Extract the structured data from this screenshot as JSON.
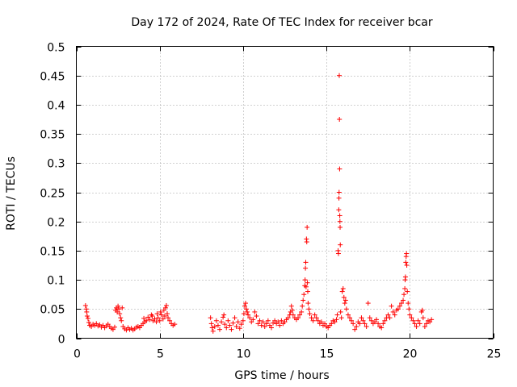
{
  "chart_data": {
    "type": "scatter",
    "title": "Day 172 of 2024, Rate Of TEC Index for receiver bcar",
    "xlabel": "GPS time / hours",
    "ylabel": "ROTI / TECUs",
    "xlim": [
      0,
      25
    ],
    "ylim": [
      0,
      0.5
    ],
    "xticks": [
      0,
      5,
      10,
      15,
      20,
      25
    ],
    "xtick_labels": [
      "0",
      "5",
      "10",
      "15",
      "20",
      "25"
    ],
    "yticks": [
      0,
      0.05,
      0.1,
      0.15,
      0.2,
      0.25,
      0.3,
      0.35,
      0.4,
      0.45,
      0.5
    ],
    "ytick_labels": [
      "0",
      "0.05",
      "0.1",
      "0.15",
      "0.2",
      "0.25",
      "0.3",
      "0.35",
      "0.4",
      "0.45",
      "0.5"
    ],
    "grid": true,
    "marker": "+",
    "color": "#ff0000",
    "points": [
      [
        0.55,
        0.056
      ],
      [
        0.6,
        0.05
      ],
      [
        0.62,
        0.045
      ],
      [
        0.65,
        0.038
      ],
      [
        0.7,
        0.034
      ],
      [
        0.75,
        0.027
      ],
      [
        0.8,
        0.022
      ],
      [
        0.9,
        0.02
      ],
      [
        1.0,
        0.024
      ],
      [
        1.1,
        0.022
      ],
      [
        1.2,
        0.025
      ],
      [
        1.3,
        0.021
      ],
      [
        1.4,
        0.023
      ],
      [
        1.5,
        0.019
      ],
      [
        1.6,
        0.022
      ],
      [
        1.7,
        0.018
      ],
      [
        1.8,
        0.021
      ],
      [
        1.9,
        0.024
      ],
      [
        2.0,
        0.02
      ],
      [
        2.1,
        0.017
      ],
      [
        2.2,
        0.015
      ],
      [
        2.3,
        0.019
      ],
      [
        2.35,
        0.048
      ],
      [
        2.4,
        0.052
      ],
      [
        2.45,
        0.045
      ],
      [
        2.5,
        0.055
      ],
      [
        2.55,
        0.05
      ],
      [
        2.6,
        0.042
      ],
      [
        2.65,
        0.035
      ],
      [
        2.7,
        0.03
      ],
      [
        2.75,
        0.052
      ],
      [
        2.8,
        0.02
      ],
      [
        2.9,
        0.016
      ],
      [
        3.0,
        0.014
      ],
      [
        3.1,
        0.018
      ],
      [
        3.2,
        0.015
      ],
      [
        3.3,
        0.017
      ],
      [
        3.4,
        0.014
      ],
      [
        3.5,
        0.016
      ],
      [
        3.6,
        0.019
      ],
      [
        3.7,
        0.02
      ],
      [
        3.8,
        0.018
      ],
      [
        3.9,
        0.022
      ],
      [
        4.0,
        0.025
      ],
      [
        4.05,
        0.034
      ],
      [
        4.1,
        0.028
      ],
      [
        4.2,
        0.03
      ],
      [
        4.3,
        0.036
      ],
      [
        4.4,
        0.032
      ],
      [
        4.5,
        0.04
      ],
      [
        4.55,
        0.038
      ],
      [
        4.6,
        0.03
      ],
      [
        4.7,
        0.033
      ],
      [
        4.8,
        0.028
      ],
      [
        4.85,
        0.042
      ],
      [
        4.9,
        0.035
      ],
      [
        5.0,
        0.03
      ],
      [
        5.05,
        0.045
      ],
      [
        5.1,
        0.04
      ],
      [
        5.2,
        0.033
      ],
      [
        5.25,
        0.048
      ],
      [
        5.3,
        0.038
      ],
      [
        5.35,
        0.052
      ],
      [
        5.4,
        0.056
      ],
      [
        5.45,
        0.042
      ],
      [
        5.5,
        0.035
      ],
      [
        5.6,
        0.03
      ],
      [
        5.7,
        0.025
      ],
      [
        5.8,
        0.022
      ],
      [
        5.9,
        0.024
      ],
      [
        8.05,
        0.035
      ],
      [
        8.1,
        0.025
      ],
      [
        8.15,
        0.018
      ],
      [
        8.2,
        0.012
      ],
      [
        8.3,
        0.02
      ],
      [
        8.4,
        0.03
      ],
      [
        8.5,
        0.022
      ],
      [
        8.6,
        0.015
      ],
      [
        8.7,
        0.028
      ],
      [
        8.8,
        0.036
      ],
      [
        8.85,
        0.04
      ],
      [
        8.9,
        0.024
      ],
      [
        9.0,
        0.018
      ],
      [
        9.1,
        0.03
      ],
      [
        9.2,
        0.022
      ],
      [
        9.3,
        0.015
      ],
      [
        9.4,
        0.026
      ],
      [
        9.5,
        0.035
      ],
      [
        9.6,
        0.02
      ],
      [
        9.7,
        0.028
      ],
      [
        9.8,
        0.017
      ],
      [
        9.9,
        0.024
      ],
      [
        10.0,
        0.03
      ],
      [
        10.05,
        0.042
      ],
      [
        10.1,
        0.055
      ],
      [
        10.15,
        0.06
      ],
      [
        10.2,
        0.05
      ],
      [
        10.25,
        0.045
      ],
      [
        10.3,
        0.04
      ],
      [
        10.4,
        0.035
      ],
      [
        10.5,
        0.028
      ],
      [
        10.6,
        0.032
      ],
      [
        10.7,
        0.045
      ],
      [
        10.8,
        0.038
      ],
      [
        10.9,
        0.025
      ],
      [
        11.0,
        0.03
      ],
      [
        11.1,
        0.022
      ],
      [
        11.2,
        0.028
      ],
      [
        11.3,
        0.02
      ],
      [
        11.4,
        0.025
      ],
      [
        11.5,
        0.03
      ],
      [
        11.6,
        0.022
      ],
      [
        11.7,
        0.018
      ],
      [
        11.8,
        0.026
      ],
      [
        11.9,
        0.03
      ],
      [
        12.0,
        0.025
      ],
      [
        12.1,
        0.028
      ],
      [
        12.2,
        0.022
      ],
      [
        12.3,
        0.03
      ],
      [
        12.4,
        0.025
      ],
      [
        12.5,
        0.028
      ],
      [
        12.6,
        0.032
      ],
      [
        12.7,
        0.035
      ],
      [
        12.8,
        0.04
      ],
      [
        12.85,
        0.045
      ],
      [
        12.9,
        0.055
      ],
      [
        12.95,
        0.048
      ],
      [
        13.0,
        0.04
      ],
      [
        13.1,
        0.035
      ],
      [
        13.2,
        0.032
      ],
      [
        13.3,
        0.035
      ],
      [
        13.4,
        0.04
      ],
      [
        13.5,
        0.045
      ],
      [
        13.55,
        0.055
      ],
      [
        13.6,
        0.065
      ],
      [
        13.65,
        0.075
      ],
      [
        13.7,
        0.09
      ],
      [
        13.72,
        0.1
      ],
      [
        13.74,
        0.12
      ],
      [
        13.76,
        0.13
      ],
      [
        13.78,
        0.088
      ],
      [
        13.8,
        0.17
      ],
      [
        13.82,
        0.165
      ],
      [
        13.84,
        0.19
      ],
      [
        13.86,
        0.095
      ],
      [
        13.88,
        0.08
      ],
      [
        13.9,
        0.06
      ],
      [
        13.95,
        0.05
      ],
      [
        14.0,
        0.042
      ],
      [
        14.1,
        0.035
      ],
      [
        14.2,
        0.03
      ],
      [
        14.3,
        0.04
      ],
      [
        14.4,
        0.035
      ],
      [
        14.5,
        0.03
      ],
      [
        14.6,
        0.025
      ],
      [
        14.7,
        0.028
      ],
      [
        14.8,
        0.022
      ],
      [
        14.9,
        0.025
      ],
      [
        15.0,
        0.02
      ],
      [
        15.1,
        0.018
      ],
      [
        15.2,
        0.022
      ],
      [
        15.3,
        0.025
      ],
      [
        15.4,
        0.03
      ],
      [
        15.5,
        0.028
      ],
      [
        15.6,
        0.032
      ],
      [
        15.65,
        0.04
      ],
      [
        15.7,
        0.15
      ],
      [
        15.72,
        0.145
      ],
      [
        15.74,
        0.22
      ],
      [
        15.75,
        0.24
      ],
      [
        15.76,
        0.25
      ],
      [
        15.77,
        0.45
      ],
      [
        15.78,
        0.375
      ],
      [
        15.79,
        0.29
      ],
      [
        15.8,
        0.21
      ],
      [
        15.81,
        0.2
      ],
      [
        15.82,
        0.19
      ],
      [
        15.83,
        0.16
      ],
      [
        15.85,
        0.045
      ],
      [
        15.9,
        0.035
      ],
      [
        15.95,
        0.08
      ],
      [
        16.0,
        0.085
      ],
      [
        16.05,
        0.07
      ],
      [
        16.1,
        0.06
      ],
      [
        16.15,
        0.065
      ],
      [
        16.2,
        0.05
      ],
      [
        16.3,
        0.04
      ],
      [
        16.4,
        0.035
      ],
      [
        16.5,
        0.03
      ],
      [
        16.6,
        0.025
      ],
      [
        16.7,
        0.015
      ],
      [
        16.8,
        0.02
      ],
      [
        16.9,
        0.028
      ],
      [
        17.0,
        0.025
      ],
      [
        17.1,
        0.035
      ],
      [
        17.2,
        0.03
      ],
      [
        17.3,
        0.025
      ],
      [
        17.4,
        0.02
      ],
      [
        17.5,
        0.06
      ],
      [
        17.6,
        0.035
      ],
      [
        17.7,
        0.03
      ],
      [
        17.8,
        0.025
      ],
      [
        17.9,
        0.028
      ],
      [
        18.0,
        0.032
      ],
      [
        18.1,
        0.025
      ],
      [
        18.2,
        0.02
      ],
      [
        18.3,
        0.018
      ],
      [
        18.4,
        0.025
      ],
      [
        18.5,
        0.03
      ],
      [
        18.6,
        0.035
      ],
      [
        18.7,
        0.04
      ],
      [
        18.8,
        0.035
      ],
      [
        18.9,
        0.055
      ],
      [
        19.0,
        0.045
      ],
      [
        19.1,
        0.04
      ],
      [
        19.2,
        0.048
      ],
      [
        19.3,
        0.05
      ],
      [
        19.4,
        0.055
      ],
      [
        19.5,
        0.06
      ],
      [
        19.6,
        0.065
      ],
      [
        19.65,
        0.075
      ],
      [
        19.7,
        0.085
      ],
      [
        19.72,
        0.1
      ],
      [
        19.74,
        0.105
      ],
      [
        19.76,
        0.13
      ],
      [
        19.78,
        0.14
      ],
      [
        19.8,
        0.145
      ],
      [
        19.82,
        0.125
      ],
      [
        19.85,
        0.08
      ],
      [
        19.9,
        0.06
      ],
      [
        19.95,
        0.05
      ],
      [
        20.0,
        0.04
      ],
      [
        20.1,
        0.035
      ],
      [
        20.2,
        0.03
      ],
      [
        20.3,
        0.025
      ],
      [
        20.4,
        0.02
      ],
      [
        20.5,
        0.03
      ],
      [
        20.6,
        0.025
      ],
      [
        20.7,
        0.045
      ],
      [
        20.75,
        0.048
      ],
      [
        20.8,
        0.035
      ],
      [
        20.9,
        0.02
      ],
      [
        21.0,
        0.025
      ],
      [
        21.1,
        0.03
      ],
      [
        21.2,
        0.028
      ],
      [
        21.3,
        0.032
      ]
    ]
  }
}
